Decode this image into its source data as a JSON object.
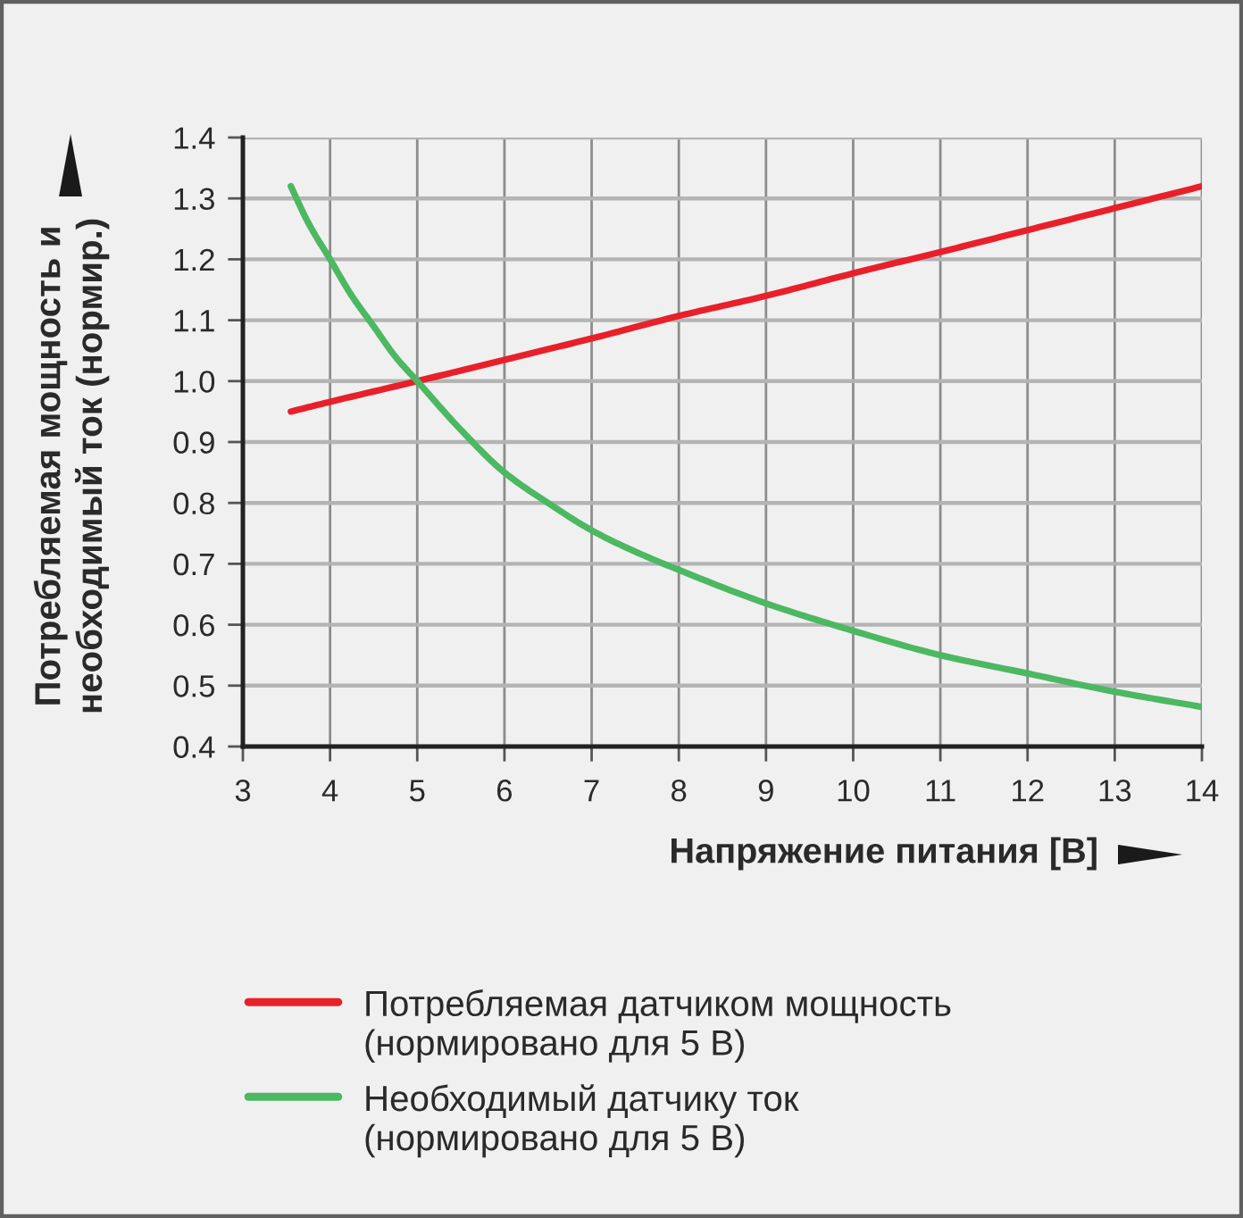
{
  "chart_data": {
    "type": "line",
    "xlabel": "Напряжение питания [В]",
    "ylabel": "Потребляемая мощность и\nнеобходимый ток (нормир.)",
    "series": [
      {
        "name": "Потребляемая датчиком мощность\n(нормировано для 5 В)",
        "color": "#e8202a",
        "x": [
          3.55,
          4,
          5,
          6,
          7,
          8,
          9,
          10,
          11,
          12,
          13,
          14
        ],
        "values": [
          0.95,
          0.966,
          1.0,
          1.035,
          1.07,
          1.107,
          1.14,
          1.177,
          1.212,
          1.248,
          1.284,
          1.32
        ]
      },
      {
        "name": "Необходимый датчику ток\n(нормировано для 5 В)",
        "color": "#4cb862",
        "x": [
          3.55,
          3.75,
          4,
          4.25,
          4.5,
          4.75,
          5,
          5.5,
          6,
          6.5,
          7,
          7.5,
          8,
          9,
          10,
          11,
          12,
          13,
          14
        ],
        "values": [
          1.32,
          1.26,
          1.2,
          1.14,
          1.09,
          1.04,
          1.0,
          0.92,
          0.85,
          0.8,
          0.755,
          0.72,
          0.69,
          0.635,
          0.59,
          0.55,
          0.52,
          0.49,
          0.465
        ]
      }
    ],
    "xlim": [
      3,
      14
    ],
    "xticks": [
      3,
      4,
      5,
      6,
      7,
      8,
      9,
      10,
      11,
      12,
      13,
      14
    ],
    "ylim": [
      0.4,
      1.4
    ],
    "yticks": [
      0.4,
      0.5,
      0.6,
      0.7,
      0.8,
      0.9,
      {
        "value": 1,
        "label": "1.0"
      },
      1.1,
      1.2,
      1.3,
      1.4
    ],
    "grid": true,
    "legend": "bottom",
    "line_style": "solid"
  }
}
